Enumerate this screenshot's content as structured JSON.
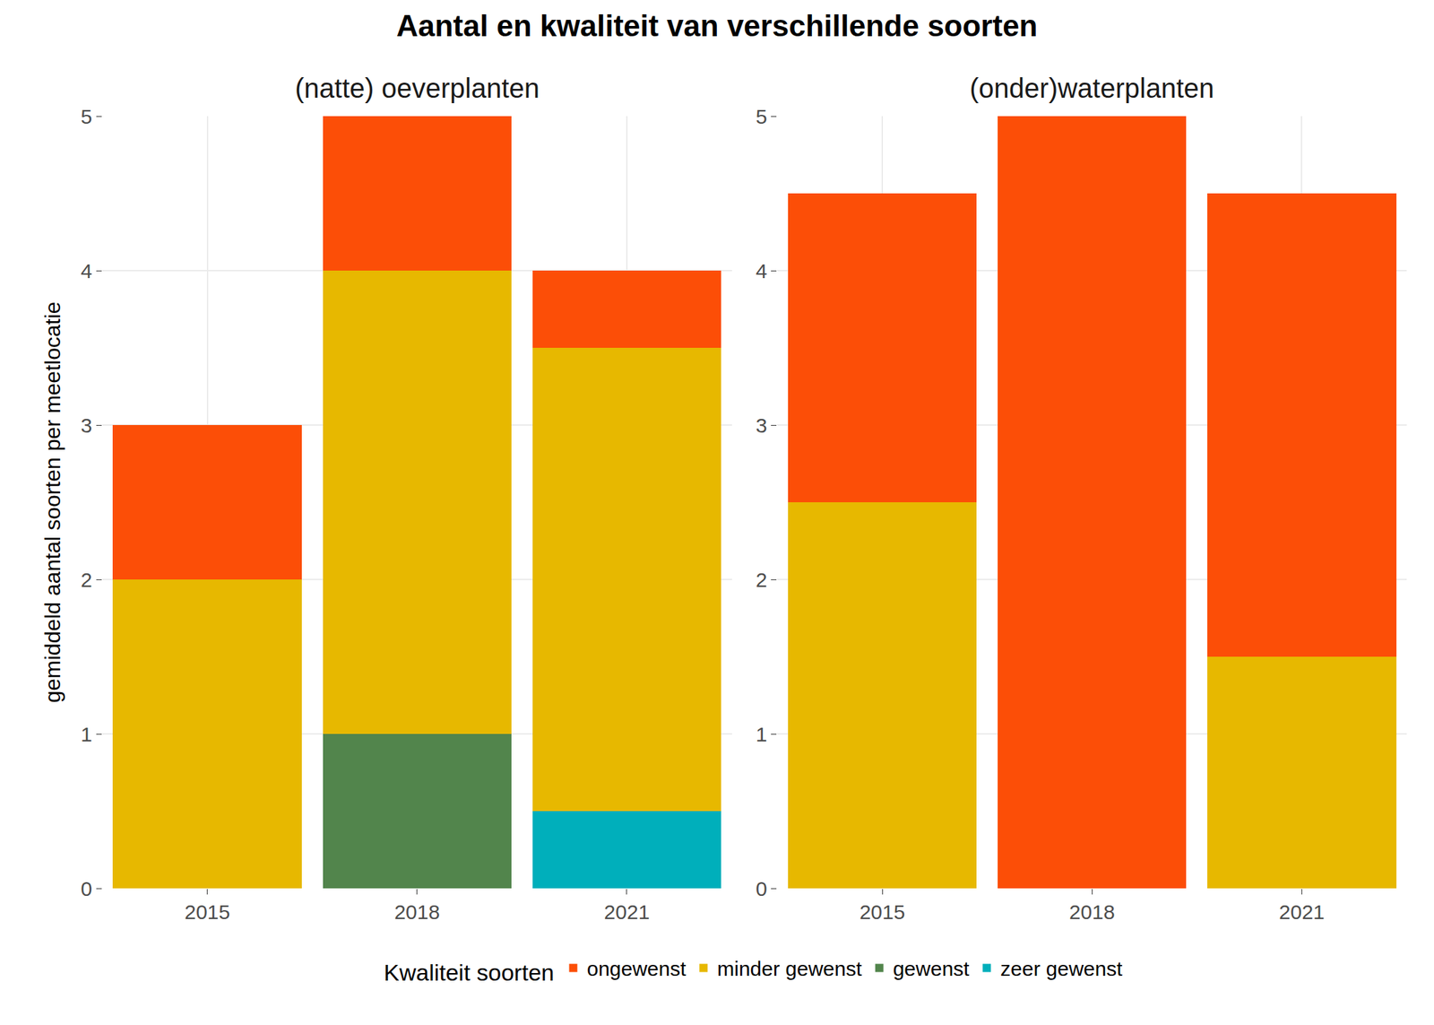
{
  "title": "Aantal en kwaliteit van verschillende soorten",
  "ylabel": "gemiddeld aantal soorten per meetlocatie",
  "legend_title": "Kwaliteit soorten",
  "chart_data": [
    {
      "type": "bar",
      "title": "(natte) oeverplanten",
      "stacked": true,
      "grid": true,
      "legend": "bottom",
      "categories": [
        "2015",
        "2018",
        "2021"
      ],
      "ylim": [
        0,
        5
      ],
      "yticks": [
        0,
        1,
        2,
        3,
        4,
        5
      ],
      "series": [
        {
          "name": "ongewenst",
          "color": "#FC4E07",
          "values": [
            1,
            1,
            0.5
          ]
        },
        {
          "name": "minder gewenst",
          "color": "#E7B800",
          "values": [
            2,
            3,
            3
          ]
        },
        {
          "name": "gewenst",
          "color": "#52854C",
          "values": [
            0,
            1,
            0
          ]
        },
        {
          "name": "zeer gewenst",
          "color": "#00AFBB",
          "values": [
            0,
            0,
            0.5
          ]
        }
      ]
    },
    {
      "type": "bar",
      "title": "(onder)waterplanten",
      "stacked": true,
      "grid": true,
      "legend": "bottom",
      "categories": [
        "2015",
        "2018",
        "2021"
      ],
      "ylim": [
        0,
        5
      ],
      "yticks": [
        0,
        1,
        2,
        3,
        4,
        5
      ],
      "series": [
        {
          "name": "ongewenst",
          "color": "#FC4E07",
          "values": [
            2,
            5,
            3
          ]
        },
        {
          "name": "minder gewenst",
          "color": "#E7B800",
          "values": [
            2.5,
            0,
            1.5
          ]
        }
      ]
    }
  ]
}
